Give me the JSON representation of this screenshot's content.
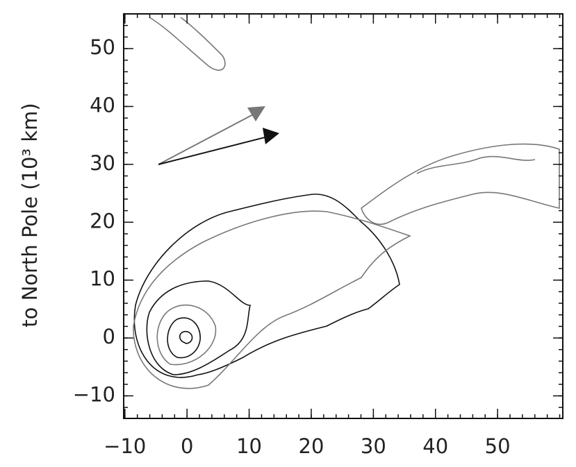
{
  "chart_data": {
    "type": "contour",
    "ylabel": "to North Pole (10³ km)",
    "xlim": [
      -10.2,
      60.5
    ],
    "ylim": [
      -13.9,
      56
    ],
    "xticks": [
      {
        "value": -10,
        "label": "−10"
      },
      0,
      10,
      20,
      30,
      40,
      50
    ],
    "yticks": [
      {
        "value": -10,
        "label": "−10"
      },
      0,
      10,
      20,
      30,
      40,
      50
    ]
  }
}
